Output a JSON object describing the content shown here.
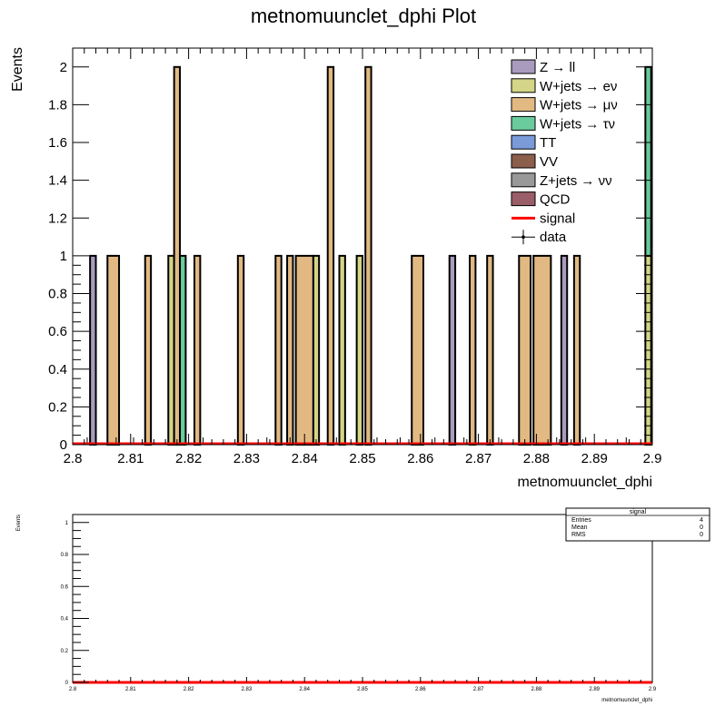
{
  "chart_data": [
    {
      "type": "bar",
      "title": "metnomuunclet_dphi Plot",
      "xlabel": "metnomuunclet_dphi",
      "ylabel": "Events",
      "xlim": [
        2.8,
        2.9
      ],
      "ylim": [
        0,
        2.1
      ],
      "x_ticks": [
        "2.8",
        "2.81",
        "2.82",
        "2.83",
        "2.84",
        "2.85",
        "2.86",
        "2.87",
        "2.88",
        "2.89",
        "2.9"
      ],
      "y_ticks": [
        "0",
        "0.2",
        "0.4",
        "0.6",
        "0.8",
        "1",
        "1.2",
        "1.4",
        "1.6",
        "1.8",
        "2"
      ],
      "legend_position": "top-right",
      "legend": [
        {
          "label": "Z → ll",
          "color": "#a99bbd",
          "kind": "fill"
        },
        {
          "label": "W+jets → eν",
          "color": "#d4d586",
          "kind": "fill"
        },
        {
          "label": "W+jets → μν",
          "color": "#e2b982",
          "kind": "fill"
        },
        {
          "label": "W+jets → τν",
          "color": "#6acb9c",
          "kind": "fill"
        },
        {
          "label": "TT",
          "color": "#7a9ad8",
          "kind": "fill"
        },
        {
          "label": "VV",
          "color": "#8c5e4c",
          "kind": "fill"
        },
        {
          "label": "Z+jets → νν",
          "color": "#999999",
          "kind": "fill"
        },
        {
          "label": "QCD",
          "color": "#9a5e69",
          "kind": "fill"
        },
        {
          "label": "signal",
          "color": "#ff0000",
          "kind": "line"
        },
        {
          "label": "data",
          "color": "#000000",
          "kind": "marker"
        }
      ],
      "series": [
        {
          "name": "Z → ll",
          "color": "#a99bbd",
          "bars": [
            {
              "x0": 2.803,
              "x1": 2.804,
              "y": 1
            },
            {
              "x0": 2.865,
              "x1": 2.866,
              "y": 1
            },
            {
              "x0": 2.8843,
              "x1": 2.8853,
              "y": 1
            }
          ]
        },
        {
          "name": "W+jets → eν",
          "color": "#d4d586",
          "bars": [
            {
              "x0": 2.8165,
              "x1": 2.8175,
              "y": 1
            },
            {
              "x0": 2.8415,
              "x1": 2.8425,
              "y": 1
            },
            {
              "x0": 2.846,
              "x1": 2.847,
              "y": 1
            },
            {
              "x0": 2.849,
              "x1": 2.85,
              "y": 1
            },
            {
              "x0": 2.8988,
              "x1": 2.8998,
              "y": 1
            }
          ]
        },
        {
          "name": "W+jets → μν",
          "color": "#e2b982",
          "bars": [
            {
              "x0": 2.806,
              "x1": 2.808,
              "y": 1
            },
            {
              "x0": 2.8125,
              "x1": 2.8135,
              "y": 1
            },
            {
              "x0": 2.8175,
              "x1": 2.8185,
              "y": 2
            },
            {
              "x0": 2.821,
              "x1": 2.822,
              "y": 1
            },
            {
              "x0": 2.8285,
              "x1": 2.8295,
              "y": 1
            },
            {
              "x0": 2.835,
              "x1": 2.836,
              "y": 1
            },
            {
              "x0": 2.837,
              "x1": 2.838,
              "y": 1
            },
            {
              "x0": 2.8385,
              "x1": 2.8415,
              "y": 1
            },
            {
              "x0": 2.844,
              "x1": 2.845,
              "y": 2
            },
            {
              "x0": 2.8505,
              "x1": 2.8515,
              "y": 2
            },
            {
              "x0": 2.8585,
              "x1": 2.8605,
              "y": 1
            },
            {
              "x0": 2.8685,
              "x1": 2.8695,
              "y": 1
            },
            {
              "x0": 2.8715,
              "x1": 2.8725,
              "y": 1
            },
            {
              "x0": 2.877,
              "x1": 2.879,
              "y": 1
            },
            {
              "x0": 2.8795,
              "x1": 2.8825,
              "y": 1
            },
            {
              "x0": 2.8865,
              "x1": 2.8875,
              "y": 1
            }
          ]
        },
        {
          "name": "W+jets → τν",
          "color": "#6acb9c",
          "bars": [
            {
              "x0": 2.8185,
              "x1": 2.8195,
              "y": 1
            },
            {
              "x0": 2.8988,
              "x1": 2.8998,
              "y": 1,
              "base": 1
            }
          ]
        }
      ],
      "data_points_x": [
        2.8025,
        2.8075,
        2.8105,
        2.8175,
        2.8225,
        2.8335,
        2.8375,
        2.8425,
        2.8455,
        2.8525,
        2.8565,
        2.8625,
        2.8675,
        2.8735,
        2.8795,
        2.8835,
        2.8885,
        2.8955
      ],
      "data_y": 0
    },
    {
      "type": "line",
      "ylabel": "Events",
      "xlabel": "metnomuunclet_dphi",
      "xlim": [
        2.8,
        2.9
      ],
      "ylim": [
        0,
        1.05
      ],
      "x_ticks": [
        "2.8",
        "2.81",
        "2.82",
        "2.83",
        "2.84",
        "2.85",
        "2.86",
        "2.87",
        "2.88",
        "2.89",
        "2.9"
      ],
      "y_ticks": [
        "0",
        "0.2",
        "0.4",
        "0.6",
        "0.8",
        "1"
      ],
      "series": [
        {
          "name": "signal",
          "color": "#ff0000",
          "x": [
            2.8,
            2.9
          ],
          "y": [
            0,
            0
          ]
        }
      ],
      "stats_box": {
        "title": "signal",
        "rows": [
          {
            "label": "Entries",
            "value": "4"
          },
          {
            "label": "Mean",
            "value": "0"
          },
          {
            "label": "RMS",
            "value": "0"
          }
        ]
      }
    }
  ]
}
